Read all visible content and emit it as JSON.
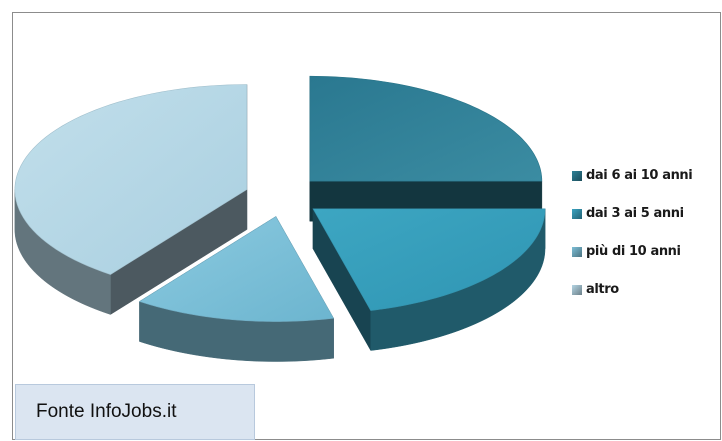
{
  "chart_data": {
    "type": "pie",
    "title": "",
    "categories": [
      "dai 6 ai 10 anni",
      "dai 3 ai 5 anni",
      "più di 10 anni",
      "altro"
    ],
    "values": [
      25,
      21,
      14,
      40
    ],
    "colors": [
      "#2e8197",
      "#3aa3c1",
      "#7dbfd7",
      "#b4d5e4"
    ],
    "legend_position": "right",
    "style": "3d-exploded"
  },
  "source": {
    "text": "Fonte InfoJobs.it"
  }
}
